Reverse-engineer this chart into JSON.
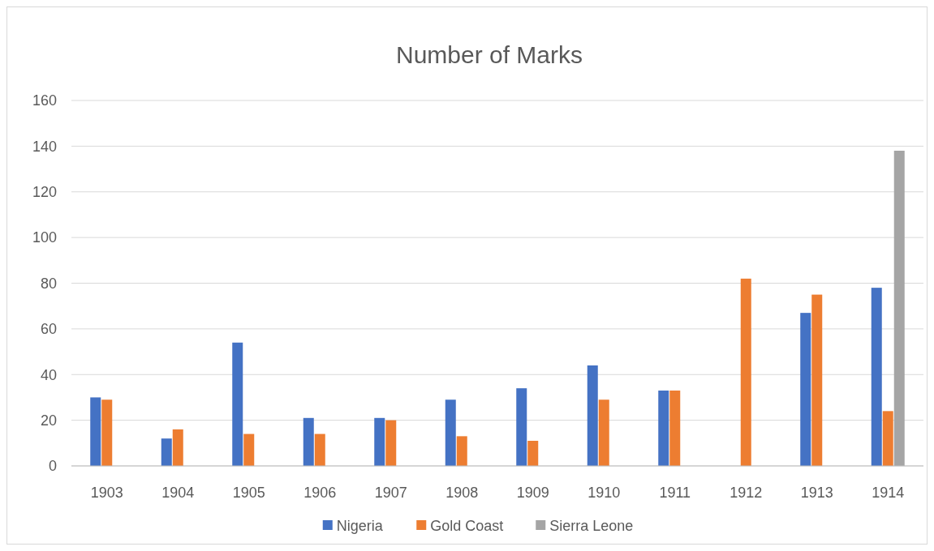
{
  "chart_data": {
    "type": "bar",
    "title": "Number of Marks",
    "categories": [
      "1903",
      "1904",
      "1905",
      "1906",
      "1907",
      "1908",
      "1909",
      "1910",
      "1911",
      "1912",
      "1913",
      "1914"
    ],
    "series": [
      {
        "name": "Nigeria",
        "color": "#4472c4",
        "values": [
          30,
          12,
          54,
          21,
          21,
          29,
          34,
          44,
          33,
          null,
          67,
          78
        ]
      },
      {
        "name": "Gold Coast",
        "color": "#ed7d31",
        "values": [
          29,
          16,
          14,
          14,
          20,
          13,
          11,
          29,
          33,
          82,
          75,
          24
        ]
      },
      {
        "name": "Sierra Leone",
        "color": "#a5a5a5",
        "values": [
          null,
          null,
          null,
          null,
          null,
          null,
          null,
          null,
          null,
          null,
          null,
          138
        ]
      }
    ],
    "ylim": [
      0,
      160
    ],
    "yticks": [
      0,
      20,
      40,
      60,
      80,
      100,
      120,
      140,
      160
    ],
    "grid": "y",
    "legend": "bottom"
  }
}
